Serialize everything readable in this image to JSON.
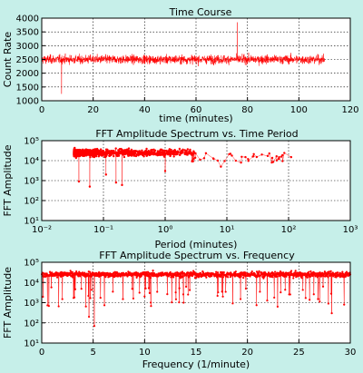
{
  "figure": {
    "background": "#c6efe9",
    "plot_bg": "#ffffff",
    "line_color": "#ff0000",
    "grid": true
  },
  "chart_data": [
    {
      "type": "line",
      "title": "Time Course",
      "xlabel": "time (minutes)",
      "ylabel": "Count Rate",
      "xlim": [
        0,
        120
      ],
      "ylim": [
        1000,
        4000
      ],
      "xticks": [
        0,
        20,
        40,
        60,
        80,
        100,
        120
      ],
      "yticks": [
        1000,
        1500,
        2000,
        2500,
        3000,
        3500,
        4000
      ],
      "series": [
        {
          "x_start": 0,
          "x_end": 110,
          "n_points": 1800,
          "mean": 2500,
          "typical_min": 1500,
          "typical_max": 3400,
          "max": 3850,
          "max_at": 76,
          "min": 1250
        }
      ]
    },
    {
      "type": "scatter",
      "title": "FFT Amplitude Spectrum vs. Time Period",
      "xlabel": "Period (minutes)",
      "ylabel": "FFT Amplitude",
      "x_scale": "log",
      "y_scale": "log",
      "xlim": [
        0.01,
        1000
      ],
      "ylim": [
        10,
        100000
      ],
      "xticks": [
        0.01,
        0.1,
        1,
        10,
        100,
        1000
      ],
      "xtick_labels": [
        "10⁻²",
        "10⁻¹",
        "10⁰",
        "10¹",
        "10²",
        "10³"
      ],
      "yticks": [
        10,
        100,
        1000,
        10000,
        100000
      ],
      "ytick_labels": [
        "10¹",
        "10²",
        "10³",
        "10⁴",
        "10⁵"
      ],
      "series": [
        {
          "x_min": 0.0333,
          "x_max": 110,
          "center_amplitude": 25000,
          "upper_amplitude": 100000,
          "lower_amplitude": 500,
          "points": [
            [
              0.04,
              900
            ],
            [
              0.06,
              500
            ],
            [
              0.11,
              2000
            ],
            [
              0.16,
              800
            ],
            [
              0.2,
              600
            ],
            [
              1.0,
              3000
            ],
            [
              8,
              5000
            ],
            [
              20,
              15000
            ],
            [
              110,
              15000
            ]
          ]
        }
      ]
    },
    {
      "type": "line",
      "title": "FFT Amplitude Spectrum vs. Frequency",
      "xlabel": "Frequency (1/minute)",
      "ylabel": "FFT Amplitude",
      "y_scale": "log",
      "xlim": [
        0,
        30
      ],
      "ylim": [
        10,
        100000
      ],
      "xticks": [
        0,
        5,
        10,
        15,
        20,
        25,
        30
      ],
      "yticks": [
        10,
        100,
        1000,
        10000,
        100000
      ],
      "ytick_labels": [
        "10¹",
        "10²",
        "10³",
        "10⁴",
        "10⁵"
      ],
      "series": [
        {
          "x_start": 0.0091,
          "x_end": 30,
          "center_amplitude": 25000,
          "upper_amplitude": 60000,
          "dips": [
            [
              5.1,
              70
            ],
            [
              4.6,
              200
            ],
            [
              2.0,
              1500
            ],
            [
              28.2,
              300
            ],
            [
              29.4,
              800
            ],
            [
              13.8,
              1000
            ],
            [
              7.9,
              1500
            ],
            [
              17.6,
              2000
            ]
          ]
        }
      ]
    }
  ]
}
